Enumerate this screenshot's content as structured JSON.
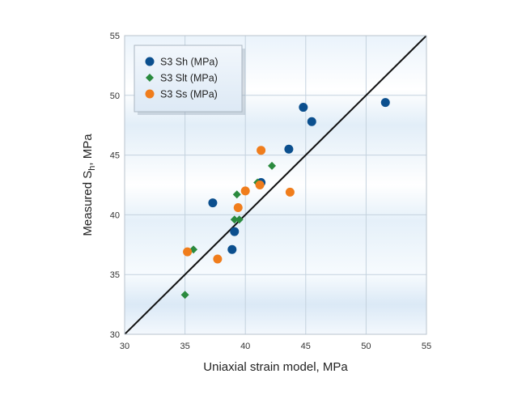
{
  "chart_data": {
    "type": "scatter",
    "title": "",
    "xlabel": "Uniaxial strain model, MPa",
    "ylabel_main": "Measured S",
    "ylabel_sub": "h",
    "ylabel_tail": ", MPa",
    "xlim": [
      30,
      55
    ],
    "ylim": [
      30,
      55
    ],
    "xticks": [
      30,
      35,
      40,
      45,
      50,
      55
    ],
    "yticks": [
      30,
      35,
      40,
      45,
      50,
      55
    ],
    "grid": true,
    "legend_position": "top-left",
    "reference_line": {
      "from": [
        30,
        30
      ],
      "to": [
        55,
        55
      ],
      "color": "#111111"
    },
    "series": [
      {
        "name": "S3 Sh (MPa)",
        "marker": "circle",
        "color": "#0b4f8e",
        "points": [
          [
            37.3,
            41.0
          ],
          [
            39.1,
            38.6
          ],
          [
            38.9,
            37.1
          ],
          [
            41.3,
            42.7
          ],
          [
            43.6,
            45.5
          ],
          [
            44.8,
            49.0
          ],
          [
            45.5,
            47.8
          ],
          [
            51.6,
            49.4
          ]
        ]
      },
      {
        "name": "S3 Slt (MPa)",
        "marker": "diamond",
        "color": "#2a8a3e",
        "points": [
          [
            35.0,
            33.3
          ],
          [
            35.7,
            37.1
          ],
          [
            39.1,
            39.6
          ],
          [
            39.5,
            39.6
          ],
          [
            39.3,
            41.7
          ],
          [
            41.0,
            42.7
          ],
          [
            42.2,
            44.1
          ]
        ]
      },
      {
        "name": "S3 Ss (MPa)",
        "marker": "circle",
        "color": "#f07d1c",
        "points": [
          [
            35.2,
            36.9
          ],
          [
            37.7,
            36.3
          ],
          [
            39.4,
            40.6
          ],
          [
            40.0,
            42.0
          ],
          [
            41.2,
            42.5
          ],
          [
            41.3,
            45.4
          ],
          [
            43.7,
            41.9
          ]
        ]
      }
    ]
  }
}
